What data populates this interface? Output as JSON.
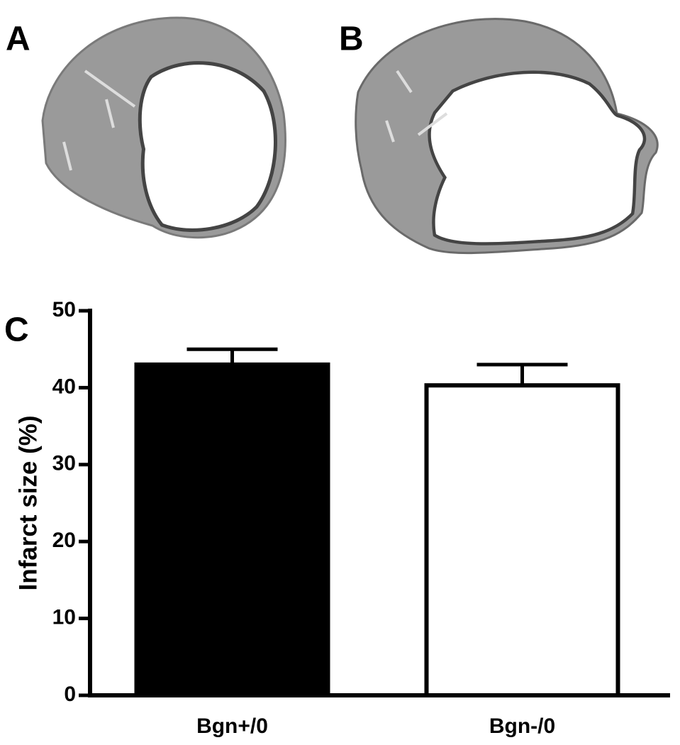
{
  "panels": [
    {
      "label": "A"
    },
    {
      "label": "B"
    }
  ],
  "chart_data": {
    "type": "bar",
    "panel_label": "C",
    "ylabel": "Infarct size (%)",
    "categories": [
      "Bgn+/0",
      "Bgn-/0"
    ],
    "values": [
      43,
      40.3
    ],
    "errors": [
      2,
      2.7
    ],
    "colors": [
      "#000000",
      "#ffffff"
    ],
    "ylim": [
      0,
      50
    ],
    "yticks": [
      0,
      10,
      20,
      30,
      40,
      50
    ]
  }
}
